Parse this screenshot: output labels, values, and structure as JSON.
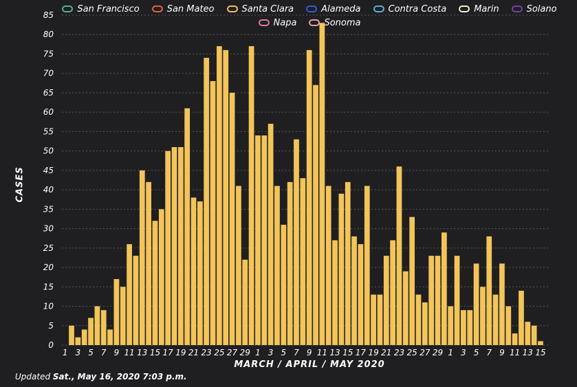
{
  "legend": [
    {
      "name": "San Francisco",
      "color": "#4db38e"
    },
    {
      "name": "San Mateo",
      "color": "#e0643a"
    },
    {
      "name": "Santa Clara",
      "color": "#f2c45a"
    },
    {
      "name": "Alameda",
      "color": "#2f5fd6"
    },
    {
      "name": "Contra Costa",
      "color": "#5ab0d8"
    },
    {
      "name": "Marin",
      "color": "#f0f0d0"
    },
    {
      "name": "Solano",
      "color": "#7a3fa8"
    },
    {
      "name": "Napa",
      "color": "#e07a9a"
    },
    {
      "name": "Sonoma",
      "color": "#e0a0a8"
    }
  ],
  "footer": {
    "prefix": "Updated",
    "date": "Sat., May 16, 2020 7:03 p.m."
  },
  "chart_data": {
    "type": "bar",
    "title": "",
    "xlabel": "MARCH / APRIL / MAY 2020",
    "ylabel": "CASES",
    "ylim": [
      0,
      85
    ],
    "y_ticks": [
      0,
      5,
      10,
      15,
      20,
      25,
      30,
      35,
      40,
      45,
      50,
      55,
      60,
      65,
      70,
      75,
      80,
      85
    ],
    "grid": true,
    "legend_position": "top",
    "x_tick_labels": [
      "1",
      "3",
      "5",
      "7",
      "9",
      "11",
      "13",
      "15",
      "17",
      "19",
      "21",
      "23",
      "25",
      "27",
      "29",
      "1",
      "3",
      "5",
      "7",
      "9",
      "11",
      "13",
      "15",
      "17",
      "19",
      "21",
      "23",
      "25",
      "27",
      "29",
      "1",
      "3",
      "5",
      "7",
      "9",
      "11",
      "13",
      "15"
    ],
    "series": [
      {
        "name": "Santa Clara",
        "color": "#f2c45a",
        "categories": [
          "Mar 1",
          "Mar 2",
          "Mar 3",
          "Mar 4",
          "Mar 5",
          "Mar 6",
          "Mar 7",
          "Mar 8",
          "Mar 9",
          "Mar 10",
          "Mar 11",
          "Mar 12",
          "Mar 13",
          "Mar 14",
          "Mar 15",
          "Mar 16",
          "Mar 17",
          "Mar 18",
          "Mar 19",
          "Mar 20",
          "Mar 21",
          "Mar 22",
          "Mar 23",
          "Mar 24",
          "Mar 25",
          "Mar 26",
          "Mar 27",
          "Mar 28",
          "Mar 29",
          "Mar 30",
          "Mar 31",
          "Apr 1",
          "Apr 2",
          "Apr 3",
          "Apr 4",
          "Apr 5",
          "Apr 6",
          "Apr 7",
          "Apr 8",
          "Apr 9",
          "Apr 10",
          "Apr 11",
          "Apr 12",
          "Apr 13",
          "Apr 14",
          "Apr 15",
          "Apr 16",
          "Apr 17",
          "Apr 18",
          "Apr 19",
          "Apr 20",
          "Apr 21",
          "Apr 22",
          "Apr 23",
          "Apr 24",
          "Apr 25",
          "Apr 26",
          "Apr 27",
          "Apr 28",
          "Apr 29",
          "Apr 30",
          "May 1",
          "May 2",
          "May 3",
          "May 4",
          "May 5",
          "May 6",
          "May 7",
          "May 8",
          "May 9",
          "May 10",
          "May 11",
          "May 12",
          "May 13",
          "May 14",
          "May 15"
        ],
        "values": [
          0,
          5,
          2,
          4,
          7,
          10,
          9,
          4,
          17,
          15,
          26,
          23,
          45,
          42,
          32,
          35,
          50,
          51,
          51,
          61,
          38,
          37,
          74,
          68,
          77,
          76,
          65,
          41,
          22,
          77,
          54,
          54,
          57,
          41,
          31,
          42,
          53,
          43,
          76,
          67,
          83,
          41,
          27,
          39,
          42,
          28,
          26,
          41,
          13,
          13,
          23,
          27,
          46,
          19,
          33,
          13,
          11,
          23,
          23,
          29,
          10,
          23,
          9,
          9,
          21,
          15,
          28,
          13,
          21,
          10,
          3,
          14,
          6,
          5,
          1,
          0
        ]
      }
    ]
  }
}
